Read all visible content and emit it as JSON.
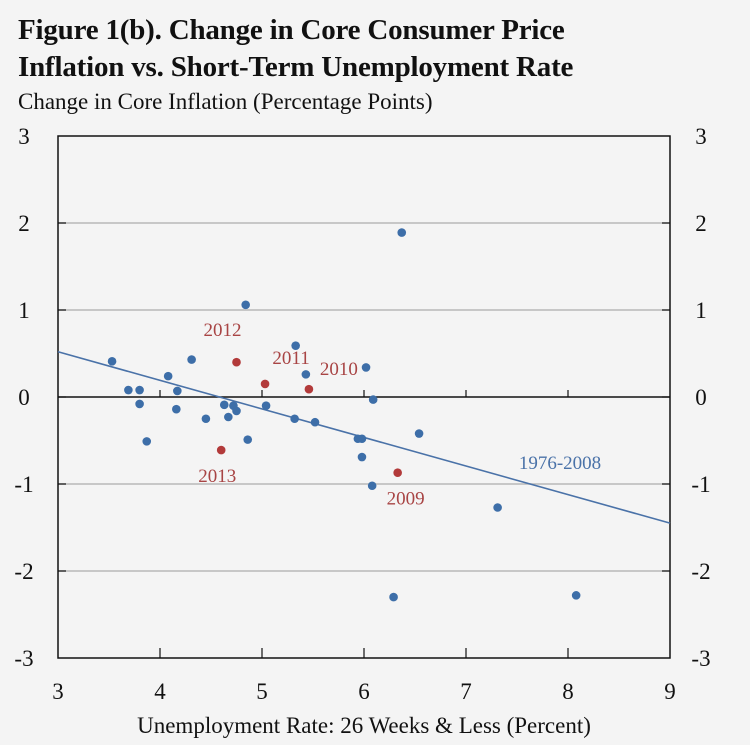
{
  "chart_data": {
    "type": "scatter",
    "title_line1": "Figure 1(b). Change in Core Consumer Price",
    "title_line2": "Inflation vs. Short-Term Unemployment Rate",
    "ylabel": "Change in Core Inflation (Percentage Points)",
    "xlabel": "Unemployment Rate: 26 Weeks & Less (Percent)",
    "xlim": [
      3,
      9
    ],
    "ylim": [
      -3,
      3
    ],
    "xticks": [
      "3",
      "4",
      "5",
      "6",
      "7",
      "8",
      "9"
    ],
    "yticks": [
      "3",
      "2",
      "1",
      "0",
      "-1",
      "-2",
      "-3"
    ],
    "grid": "horizontal",
    "colors": {
      "historical": "#3d6ea8",
      "recent": "#b23a3a",
      "recent_text": "#a84444",
      "trend": "#4a72a8"
    },
    "series": [
      {
        "name": "1976-2008",
        "points": [
          [
            3.53,
            0.41
          ],
          [
            4.31,
            0.43
          ],
          [
            4.08,
            0.24
          ],
          [
            3.69,
            0.08
          ],
          [
            3.8,
            0.08
          ],
          [
            4.17,
            0.07
          ],
          [
            3.8,
            -0.08
          ],
          [
            4.16,
            -0.14
          ],
          [
            4.45,
            -0.25
          ],
          [
            3.87,
            -0.51
          ],
          [
            4.84,
            1.06
          ],
          [
            5.33,
            0.59
          ],
          [
            5.43,
            0.26
          ],
          [
            4.63,
            -0.09
          ],
          [
            4.72,
            -0.1
          ],
          [
            4.75,
            -0.16
          ],
          [
            4.67,
            -0.23
          ],
          [
            5.04,
            -0.1
          ],
          [
            5.32,
            -0.25
          ],
          [
            5.52,
            -0.29
          ],
          [
            4.86,
            -0.49
          ],
          [
            6.37,
            1.89
          ],
          [
            6.02,
            0.34
          ],
          [
            6.09,
            -0.03
          ],
          [
            5.94,
            -0.48
          ],
          [
            5.98,
            -0.48
          ],
          [
            5.98,
            -0.69
          ],
          [
            6.54,
            -0.42
          ],
          [
            6.08,
            -1.02
          ],
          [
            7.31,
            -1.27
          ],
          [
            6.29,
            -2.3
          ],
          [
            8.08,
            -2.28
          ]
        ]
      },
      {
        "name": "2009-2013",
        "points": [
          {
            "x": 6.33,
            "y": -0.87,
            "label": "2009"
          },
          {
            "x": 5.46,
            "y": 0.09,
            "label": "2010"
          },
          {
            "x": 5.03,
            "y": 0.15,
            "label": "2011"
          },
          {
            "x": 4.75,
            "y": 0.4,
            "label": "2012"
          },
          {
            "x": 4.6,
            "y": -0.61,
            "label": "2013"
          }
        ]
      }
    ],
    "trend_line": {
      "label": "1976-2008",
      "x": [
        3,
        9
      ],
      "y": [
        0.52,
        -1.45
      ]
    }
  }
}
